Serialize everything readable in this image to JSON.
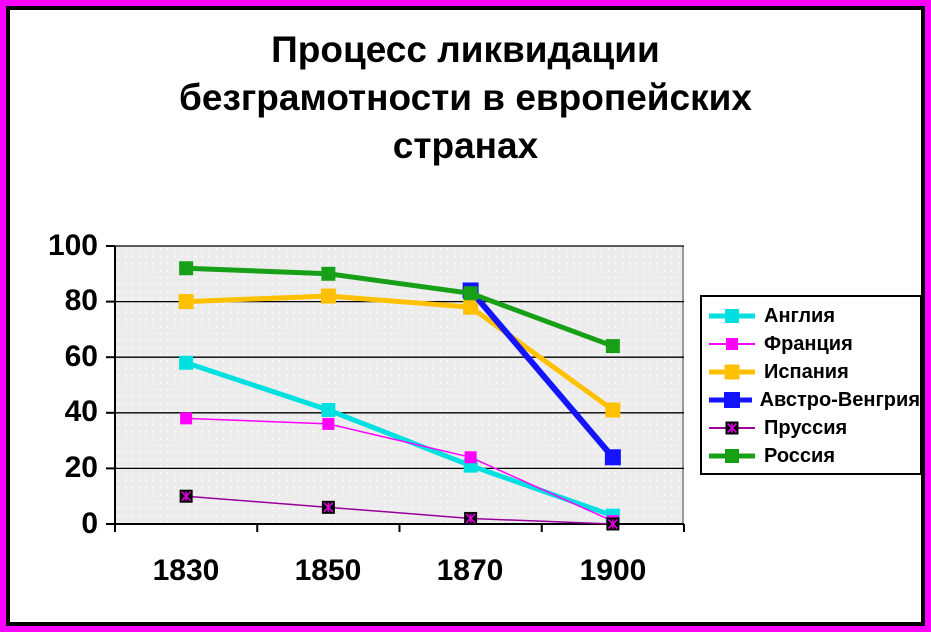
{
  "title": {
    "lines": [
      "Процесс ликвидации",
      "безграмотности в европейских",
      "странах"
    ]
  },
  "colors": {
    "outer_frame": "#ff00ff",
    "inner_border": "#000000",
    "plot_background": "#ececec",
    "gridline": "#000000"
  },
  "chart_data": {
    "type": "line",
    "title": "Процесс ликвидации безграмотности в европейских странах",
    "categories": [
      "1830",
      "1850",
      "1870",
      "1900"
    ],
    "y_ticks": [
      0,
      20,
      40,
      60,
      80,
      100
    ],
    "ylim": [
      0,
      100
    ],
    "grid": "horizontal",
    "legend_position": "right",
    "series": [
      {
        "name": "Англия",
        "color": "#00e0e0",
        "values": [
          58,
          41,
          21,
          3
        ],
        "line_width": 5,
        "marker": "square",
        "marker_size": 14
      },
      {
        "name": "Франция",
        "color": "#ff00ff",
        "values": [
          38,
          36,
          24,
          1
        ],
        "line_width": 1.5,
        "marker": "square",
        "marker_size": 12
      },
      {
        "name": "Испания",
        "color": "#ffc000",
        "values": [
          80,
          82,
          78,
          41
        ],
        "line_width": 5,
        "marker": "square",
        "marker_size": 15
      },
      {
        "name": "Австро-Венгрия",
        "color": "#1414ff",
        "values": [
          null,
          null,
          84,
          24
        ],
        "line_width": 6,
        "marker": "square",
        "marker_size": 16
      },
      {
        "name": "Пруссия",
        "color": "#990099",
        "values": [
          10,
          6,
          2,
          0
        ],
        "line_width": 1.5,
        "marker": "star-black",
        "marker_size": 13
      },
      {
        "name": "Россия",
        "color": "#17a017",
        "values": [
          92,
          90,
          83,
          64
        ],
        "line_width": 5,
        "marker": "square",
        "marker_size": 14
      }
    ]
  }
}
